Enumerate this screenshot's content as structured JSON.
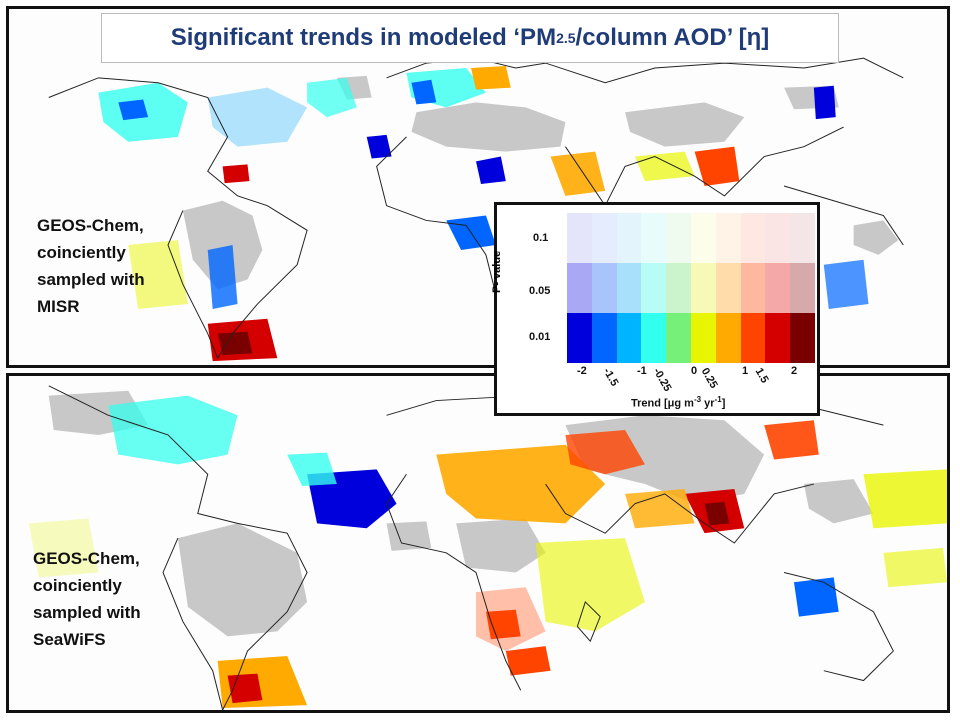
{
  "title": {
    "pre": "Significant trends in modeled ‘PM",
    "sub": "2.5",
    "post": " /column AOD’ [η]"
  },
  "panels": [
    {
      "id": "top",
      "label_lines": [
        "GEOS-Chem,",
        "coinciently",
        "sampled with",
        "MISR"
      ]
    },
    {
      "id": "bottom",
      "label_lines": [
        "GEOS-Chem,",
        "coinciently",
        "sampled with",
        "SeaWiFS"
      ]
    }
  ],
  "legend": {
    "y_title": "P- value",
    "p_values": [
      "0.1",
      "0.05",
      "0.01"
    ],
    "trend_ticks": [
      "-2",
      "-1.5",
      "-1",
      "-0.25",
      "0",
      "0.25",
      "1",
      "1.5",
      "2"
    ],
    "x_title_pre": "Trend [μg m",
    "x_title_sup1": "-3",
    "x_title_mid": " yr",
    "x_title_sup2": "-1",
    "x_title_post": "]",
    "colors_p001": [
      "#0000dd",
      "#0066ff",
      "#00b4ff",
      "#33ffee",
      "#77f07a",
      "#e8f500",
      "#ffaa00",
      "#ff4400",
      "#d40000",
      "#7a0000"
    ],
    "colors_p005": [
      "#a8a8f4",
      "#a8c4fa",
      "#a8e0fc",
      "#b8fcf6",
      "#ccf4cc",
      "#f6fab6",
      "#ffdcaa",
      "#ffb8a0",
      "#f4a8a8",
      "#d6aaaa"
    ],
    "colors_p01": [
      "#e4e4fb",
      "#e4ecfd",
      "#e4f4fd",
      "#e8fdfb",
      "#f0fbf0",
      "#fcfdea",
      "#fff2e6",
      "#ffe8e2",
      "#fbe4e4",
      "#f4e6e6"
    ]
  },
  "map_colors": {
    "no_data": "#c8c8c8",
    "coast": "#222222"
  }
}
